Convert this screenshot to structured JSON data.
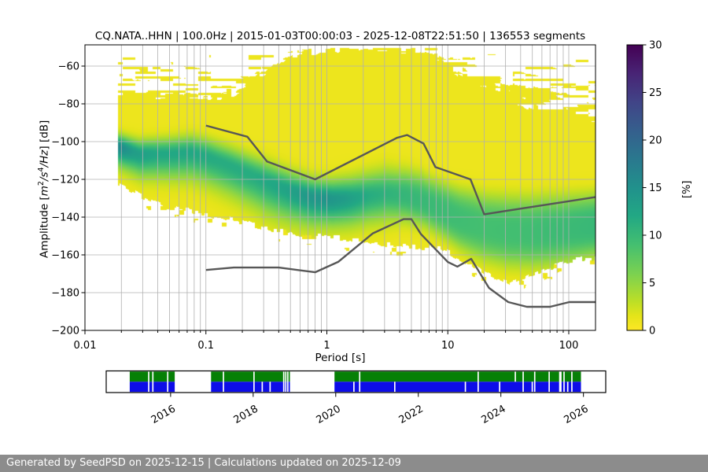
{
  "header": {
    "title": "CQ.NATA..HHN | 100.0Hz | 2015-01-03T00:00:03 - 2025-12-08T22:51:50 | 136553 segments"
  },
  "footer": {
    "text": "Generated by SeedPSD on 2025-12-15 | Calculations updated on 2025-12-09",
    "bg": "#8c8c8c",
    "fg": "#ffffff"
  },
  "colors": {
    "grid": "#b0b0b0",
    "frame": "#000000",
    "noise_model_line": "#575757",
    "availability_green": "#068006",
    "availability_blue": "#0d0de8"
  },
  "chart_data": {
    "type": "heatmap",
    "title": "CQ.NATA..HHN | 100.0Hz | 2015-01-03T00:00:03 - 2025-12-08T22:51:50 | 136553 segments",
    "xlabel": "Period [s]",
    "xscale": "log",
    "xlim": [
      0.01,
      166.4
    ],
    "ylabel": {
      "prefix": "Amplitude [",
      "m": "m",
      "sup1": "2",
      "s": "/s",
      "sup2": "4",
      "hz": "/Hz",
      "suffix": "] [dB]"
    },
    "ylim": [
      -200,
      -48.8
    ],
    "grid": true,
    "x_ticks": [
      {
        "v": 0.01,
        "label": "0.01"
      },
      {
        "v": 0.1,
        "label": "0.1"
      },
      {
        "v": 1,
        "label": "1"
      },
      {
        "v": 10,
        "label": "10"
      },
      {
        "v": 100,
        "label": "100"
      }
    ],
    "y_ticks": [
      {
        "v": -200,
        "label": "−200"
      },
      {
        "v": -180,
        "label": "−180"
      },
      {
        "v": -160,
        "label": "−160"
      },
      {
        "v": -140,
        "label": "−140"
      },
      {
        "v": -120,
        "label": "−120"
      },
      {
        "v": -100,
        "label": "−100"
      },
      {
        "v": -80,
        "label": "−80"
      },
      {
        "v": -60,
        "label": "−60"
      }
    ],
    "colorbar": {
      "label": "[%]",
      "lim": [
        0,
        30
      ],
      "ticks": [
        {
          "v": 0,
          "label": "0"
        },
        {
          "v": 5,
          "label": "5"
        },
        {
          "v": 10,
          "label": "10"
        },
        {
          "v": 15,
          "label": "15"
        },
        {
          "v": 20,
          "label": "20"
        },
        {
          "v": 25,
          "label": "25"
        },
        {
          "v": 30,
          "label": "30"
        }
      ],
      "colormap": "viridis_reversed",
      "stops": [
        [
          0,
          "#440154"
        ],
        [
          0.1,
          "#482475"
        ],
        [
          0.2,
          "#414487"
        ],
        [
          0.3,
          "#355f8d"
        ],
        [
          0.4,
          "#2a788e"
        ],
        [
          0.5,
          "#21918c"
        ],
        [
          0.6,
          "#22a884"
        ],
        [
          0.7,
          "#44bf70"
        ],
        [
          0.8,
          "#7ad151"
        ],
        [
          0.9,
          "#bddf26"
        ],
        [
          0.95,
          "#e5e419"
        ],
        [
          1,
          "#fde725"
        ]
      ]
    },
    "noise_models": {
      "nhnm": [
        [
          0.1,
          -91.5
        ],
        [
          0.22,
          -97.4
        ],
        [
          0.32,
          -110.5
        ],
        [
          0.8,
          -120.0
        ],
        [
          3.8,
          -98.0
        ],
        [
          4.6,
          -96.5
        ],
        [
          6.3,
          -101.0
        ],
        [
          7.9,
          -113.5
        ],
        [
          15.4,
          -120.0
        ],
        [
          20.0,
          -138.5
        ],
        [
          166.0,
          -129.4
        ]
      ],
      "nlnm": [
        [
          0.1,
          -168.0
        ],
        [
          0.17,
          -166.7
        ],
        [
          0.4,
          -166.7
        ],
        [
          0.8,
          -169.2
        ],
        [
          1.24,
          -163.7
        ],
        [
          2.4,
          -148.6
        ],
        [
          4.3,
          -141.1
        ],
        [
          5.0,
          -141.1
        ],
        [
          6.0,
          -149.0
        ],
        [
          10.0,
          -163.8
        ],
        [
          12.0,
          -166.2
        ],
        [
          15.6,
          -162.1
        ],
        [
          21.9,
          -177.5
        ],
        [
          31.6,
          -185.0
        ],
        [
          45.0,
          -187.5
        ],
        [
          70.0,
          -187.5
        ],
        [
          101.0,
          -185.0
        ],
        [
          166.0,
          -185.0
        ]
      ]
    },
    "ppsd_distribution": {
      "period_min_s": 0.0188,
      "period_max_s": 166.4,
      "mode_curve_logp_db": [
        [
          -1.726,
          -102.5
        ],
        [
          -1.55,
          -106.5
        ],
        [
          -1.3,
          -106.3
        ],
        [
          -1.12,
          -105.6
        ],
        [
          -1.0,
          -107.5
        ],
        [
          -0.8,
          -112.5
        ],
        [
          -0.5,
          -121
        ],
        [
          -0.3,
          -126
        ],
        [
          -0.12,
          -129.5
        ],
        [
          0.05,
          -130.5
        ],
        [
          0.2,
          -130
        ],
        [
          0.35,
          -128.5
        ],
        [
          0.5,
          -127.5
        ],
        [
          0.65,
          -128.5
        ],
        [
          0.8,
          -131.5
        ],
        [
          0.95,
          -136
        ],
        [
          1.1,
          -141
        ],
        [
          1.3,
          -145.5
        ],
        [
          1.5,
          -147.5
        ],
        [
          1.7,
          -148
        ],
        [
          1.9,
          -147
        ],
        [
          2.1,
          -145.5
        ],
        [
          2.22,
          -144.5
        ]
      ],
      "peak_percent_logp": [
        [
          -1.726,
          15
        ],
        [
          -1.6,
          12.5
        ],
        [
          -1.4,
          11
        ],
        [
          -1.1,
          11
        ],
        [
          -0.9,
          10.5
        ],
        [
          -0.6,
          10.5
        ],
        [
          -0.35,
          11.5
        ],
        [
          -0.15,
          13
        ],
        [
          0.0,
          13.5
        ],
        [
          0.15,
          12.5
        ],
        [
          0.35,
          10.5
        ],
        [
          0.55,
          9.5
        ],
        [
          0.75,
          9
        ],
        [
          1.0,
          8.5
        ],
        [
          1.3,
          8
        ],
        [
          1.6,
          8.2
        ],
        [
          1.9,
          8.6
        ],
        [
          2.22,
          9
        ]
      ],
      "sigma_db_logp": [
        [
          -1.726,
          3.2
        ],
        [
          -1.5,
          3.8
        ],
        [
          -1.0,
          4.5
        ],
        [
          -0.5,
          5.2
        ],
        [
          0.0,
          5.0
        ],
        [
          0.3,
          5.8
        ],
        [
          0.6,
          6.8
        ],
        [
          0.9,
          8.5
        ],
        [
          1.2,
          10.5
        ],
        [
          1.5,
          11.5
        ],
        [
          1.8,
          11.5
        ],
        [
          2.22,
          10.5
        ]
      ],
      "lower_edge_logp_db": [
        [
          -1.726,
          -122
        ],
        [
          -1.5,
          -130
        ],
        [
          -1.35,
          -134.5
        ],
        [
          -1.15,
          -136.5
        ],
        [
          -0.8,
          -141
        ],
        [
          -0.5,
          -146
        ],
        [
          -0.2,
          -149.5
        ],
        [
          0.0,
          -150.5
        ],
        [
          0.3,
          -152.5
        ],
        [
          0.5,
          -154.5
        ],
        [
          0.7,
          -155.5
        ],
        [
          0.94,
          -156.5
        ],
        [
          1.1,
          -162
        ],
        [
          1.37,
          -172
        ],
        [
          1.52,
          -175.5
        ],
        [
          1.7,
          -170.5
        ],
        [
          1.98,
          -163.5
        ],
        [
          2.22,
          -161.5
        ]
      ],
      "upper_solid_edge_logp_db": [
        [
          -1.726,
          -80
        ],
        [
          -1.05,
          -80
        ],
        [
          -0.75,
          -76
        ],
        [
          -0.5,
          -64
        ],
        [
          -0.25,
          -55
        ],
        [
          -0.05,
          -52.5
        ],
        [
          0.7,
          -52.5
        ],
        [
          0.9,
          -57
        ],
        [
          1.05,
          -63
        ],
        [
          1.3,
          -72
        ],
        [
          1.6,
          -80
        ],
        [
          1.9,
          -87
        ],
        [
          2.1,
          -91
        ],
        [
          2.22,
          -93
        ]
      ],
      "scatter_top_db": -50.5
    }
  },
  "availability": {
    "range_years": [
      2014.44,
      2026.54
    ],
    "segments": [
      [
        2015.01,
        2016.1
      ],
      [
        2016.98,
        2018.89
      ],
      [
        2019.97,
        2025.94
      ]
    ],
    "gaps_both": [
      2015.47,
      2015.57,
      2015.93,
      2017.28,
      2018.02,
      2018.74,
      2018.79,
      2018.84,
      2020.58,
      2023.45,
      2024.54,
      2024.82,
      2025.17,
      2025.53,
      2025.72
    ],
    "gaps_blue_only": [
      2018.22,
      2018.41,
      2020.44,
      2021.43,
      2023.14,
      2023.97,
      2024.76,
      2025.62
    ],
    "gaps_green_only": [
      2024.35
    ],
    "wide_gap": {
      "year": 2025.44,
      "width_years": 0.06
    },
    "gap_width_years": 0.032,
    "year_ticks": [
      {
        "year": 2016,
        "label": "2016"
      },
      {
        "year": 2018,
        "label": "2018"
      },
      {
        "year": 2020,
        "label": "2020"
      },
      {
        "year": 2022,
        "label": "2022"
      },
      {
        "year": 2024,
        "label": "2024"
      },
      {
        "year": 2026,
        "label": "2026"
      }
    ]
  }
}
